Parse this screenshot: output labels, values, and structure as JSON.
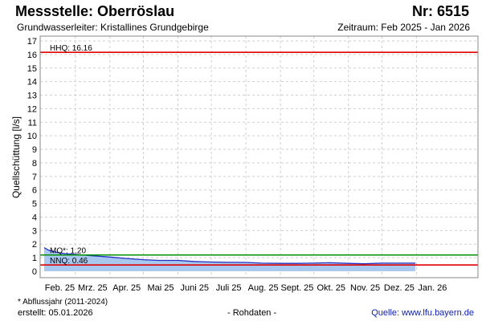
{
  "header": {
    "title": "Messstelle: Oberröslau",
    "station_nr": "Nr: 6515",
    "subtitle": "Grundwasserleiter: Kristallines Grundgebirge",
    "period": "Zeitraum: Feb 2025 - Jan 2026"
  },
  "footer": {
    "footnote": "* Abflussjahr (2011-2024)",
    "created": "erstellt:  05.01.2026",
    "rawdata": "- Rohdaten -",
    "source": "Quelle:  www.lfu.bayern.de"
  },
  "chart_data": {
    "type": "area",
    "ylabel": "Quellschüttung [l/s]",
    "ylim": [
      0,
      17
    ],
    "grid": true,
    "y_ticks": [
      "0",
      "1",
      "2",
      "3",
      "4",
      "5",
      "6",
      "7",
      "8",
      "9",
      "10",
      "11",
      "12",
      "13",
      "14",
      "15",
      "16",
      "17"
    ],
    "x_ticks": [
      "Feb. 25",
      "Mrz. 25",
      "Apr. 25",
      "Mai 25",
      "Juni 25",
      "Juli 25",
      "Aug. 25",
      "Sept. 25",
      "Okt. 25",
      "Nov. 25",
      "Dez. 25",
      "Jan. 26"
    ],
    "x_range": [
      "2025-02-01",
      "2026-01-31"
    ],
    "reference_lines": [
      {
        "label": "HHQ: 16.16",
        "value": 16.16,
        "color": "#e00000"
      },
      {
        "label": "MQ*: 1.20",
        "value": 1.2,
        "color": "#009000"
      },
      {
        "label": "NNQ: 0.46",
        "value": 0.46,
        "color": "#e00000"
      }
    ],
    "fill_color": "#a8c8f0",
    "line_color": "#2030c0",
    "series": [
      {
        "x": [
          "2025-02-01",
          "2025-02-05",
          "2025-02-12",
          "2025-02-20",
          "2025-03-01",
          "2025-03-15",
          "2025-04-01",
          "2025-04-15",
          "2025-05-01",
          "2025-05-15",
          "2025-06-01",
          "2025-06-15",
          "2025-07-01",
          "2025-07-15",
          "2025-08-01",
          "2025-08-15",
          "2025-09-01",
          "2025-09-15",
          "2025-10-01",
          "2025-10-15",
          "2025-11-01",
          "2025-11-15",
          "2025-12-01",
          "2025-12-15",
          "2025-12-31"
        ],
        "values": [
          1.75,
          1.55,
          1.4,
          1.3,
          1.25,
          1.15,
          1.05,
          0.95,
          0.85,
          0.8,
          0.8,
          0.72,
          0.68,
          0.66,
          0.65,
          0.6,
          0.58,
          0.58,
          0.6,
          0.63,
          0.58,
          0.55,
          0.6,
          0.6,
          0.6
        ]
      }
    ]
  }
}
